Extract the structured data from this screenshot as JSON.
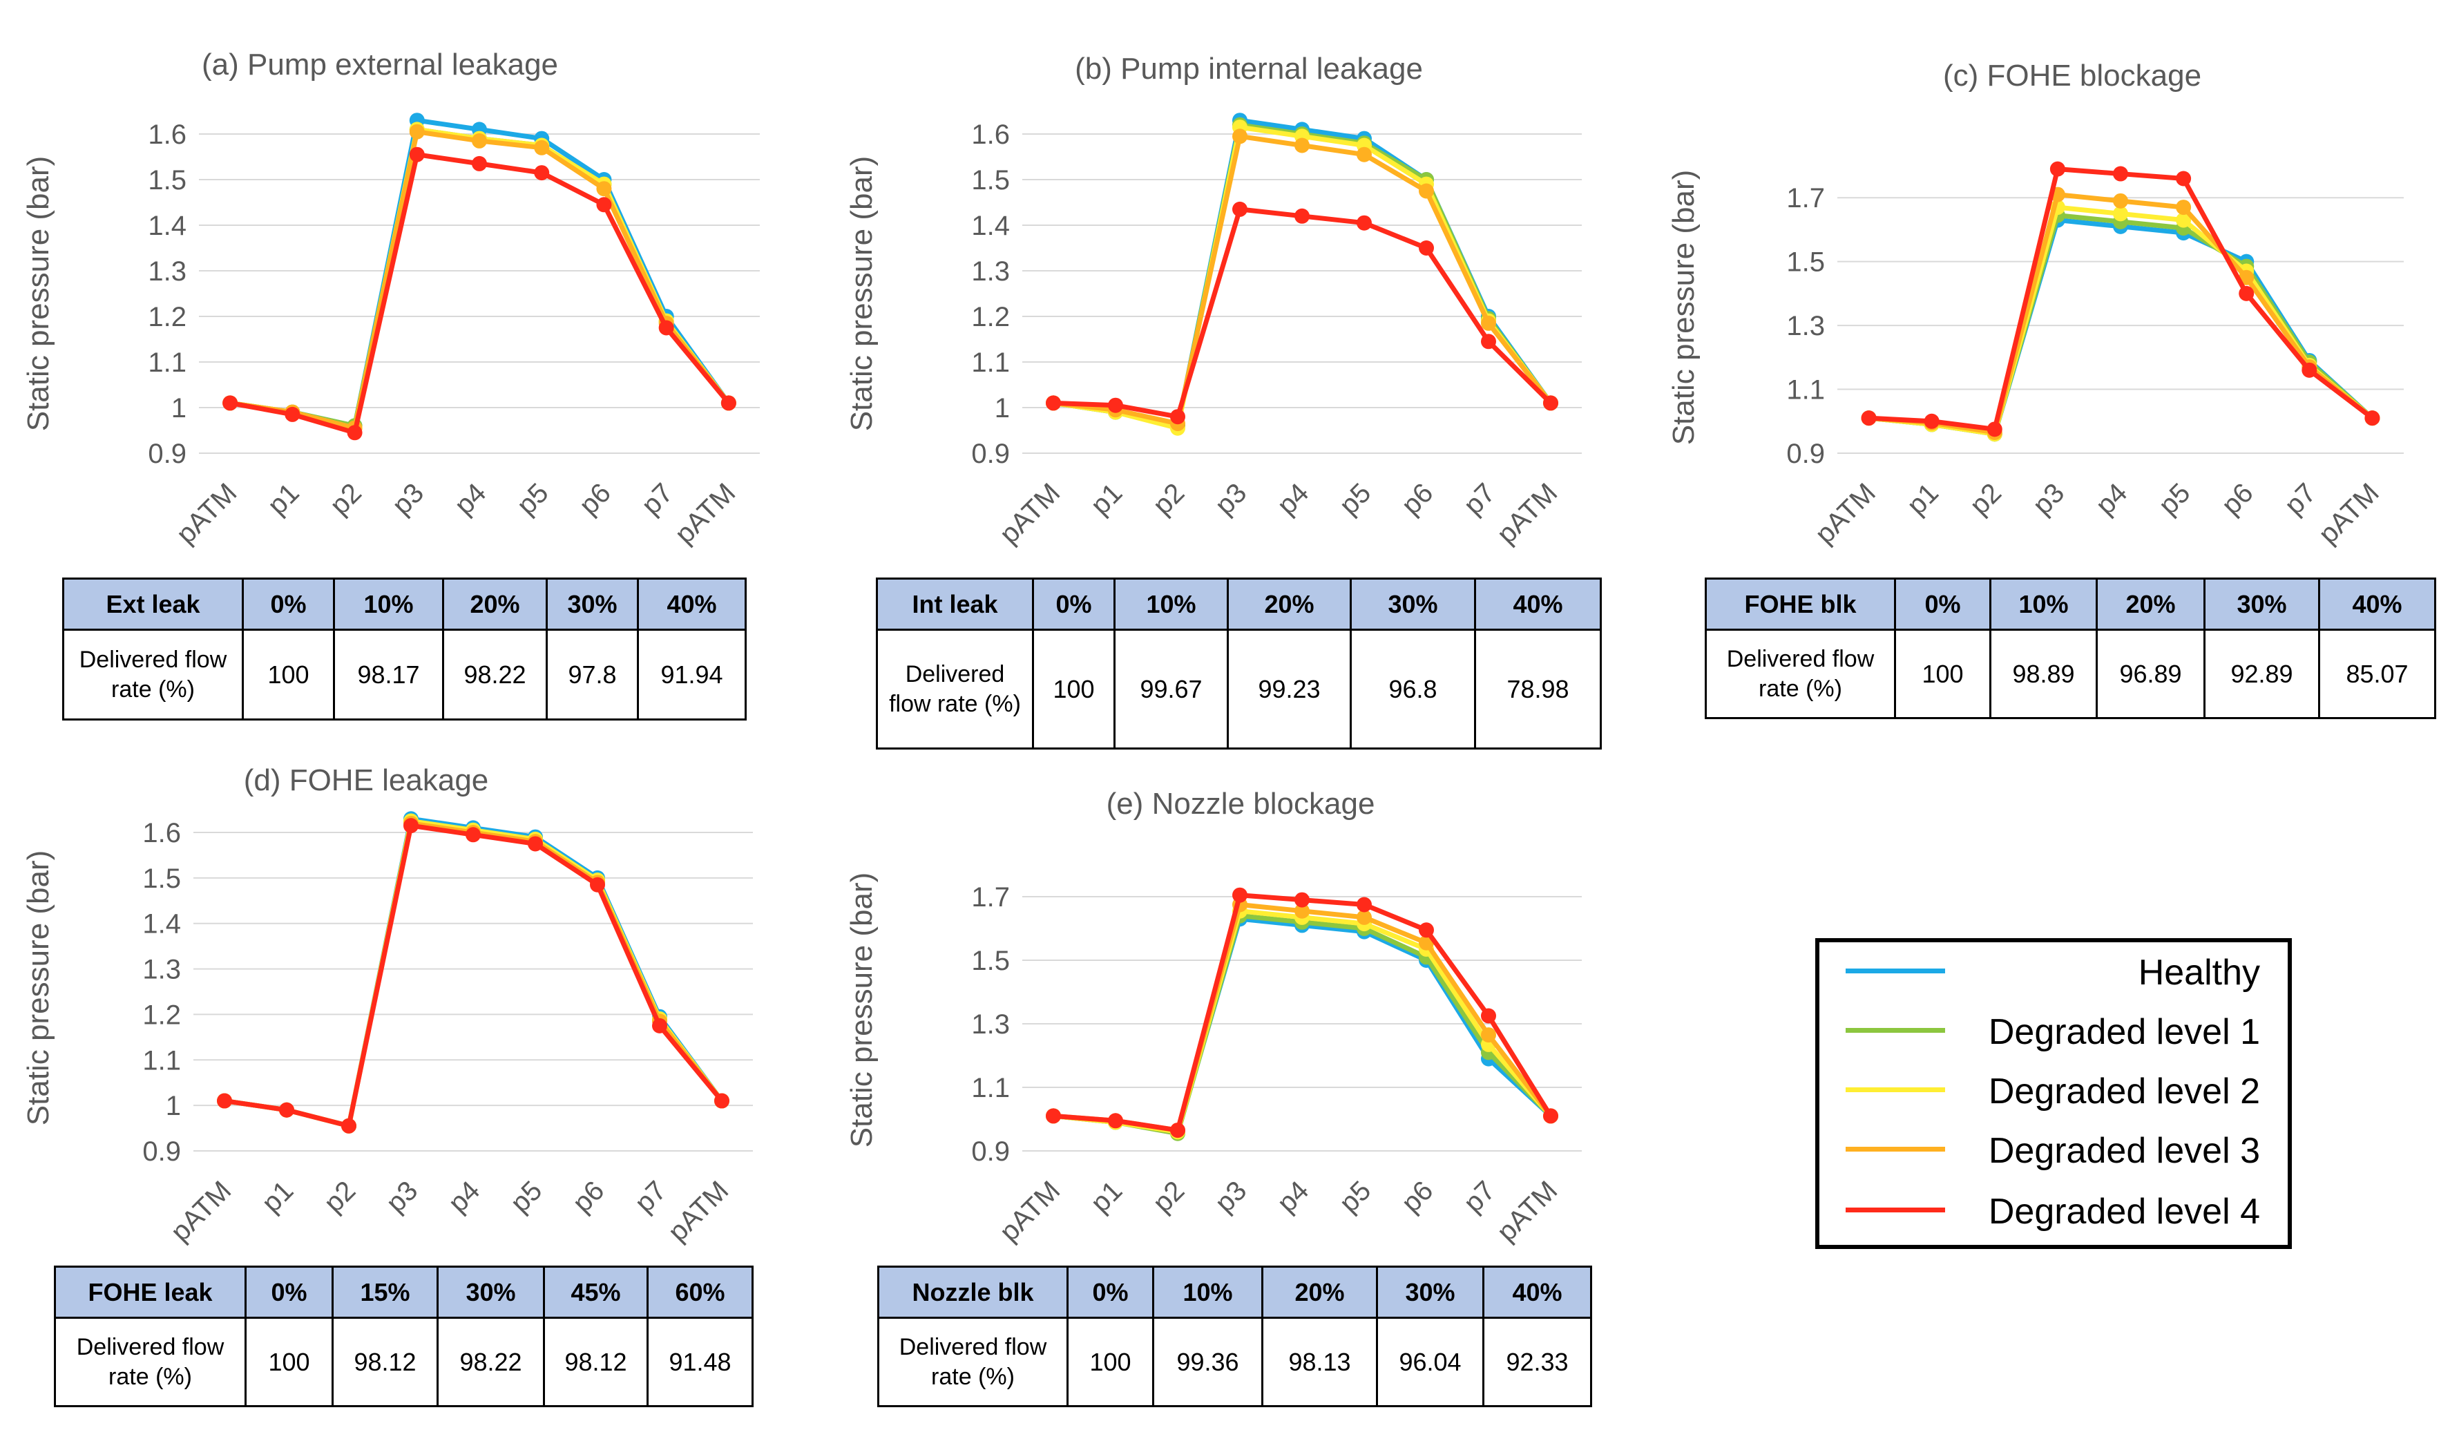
{
  "series_names": [
    "Healthy",
    "Degraded level 1",
    "Degraded level 2",
    "Degraded level 3",
    "Degraded level 4"
  ],
  "series_colors": [
    "#1ca9e6",
    "#8cc63f",
    "#ffee33",
    "#ffb020",
    "#ff2a1a"
  ],
  "chart_data": [
    {
      "type": "line",
      "title": "(a) Pump external leakage",
      "xlabel": "",
      "ylabel": "Static pressure (bar)",
      "ylim": [
        0.9,
        1.6
      ],
      "yticks": [
        0.9,
        1.0,
        1.1,
        1.2,
        1.3,
        1.4,
        1.5,
        1.6
      ],
      "ytick_labels": [
        "0.9",
        "1",
        "1.1",
        "1.2",
        "1.3",
        "1.4",
        "1.5",
        "1.6"
      ],
      "categories": [
        "pATM",
        "p1",
        "p2",
        "p3",
        "p4",
        "p5",
        "p6",
        "p7",
        "pATM"
      ],
      "series": [
        {
          "name": "Healthy",
          "values": [
            1.01,
            0.99,
            0.96,
            1.63,
            1.61,
            1.59,
            1.5,
            1.2,
            1.01
          ]
        },
        {
          "name": "Degraded level 1",
          "values": [
            1.01,
            0.99,
            0.96,
            1.61,
            1.59,
            1.575,
            1.49,
            1.19,
            1.01
          ]
        },
        {
          "name": "Degraded level 2",
          "values": [
            1.01,
            0.99,
            0.955,
            1.61,
            1.59,
            1.575,
            1.49,
            1.19,
            1.01
          ]
        },
        {
          "name": "Degraded level 3",
          "values": [
            1.01,
            0.99,
            0.955,
            1.605,
            1.585,
            1.57,
            1.48,
            1.185,
            1.01
          ]
        },
        {
          "name": "Degraded level 4",
          "values": [
            1.01,
            0.985,
            0.945,
            1.555,
            1.535,
            1.515,
            1.445,
            1.175,
            1.01
          ]
        }
      ]
    },
    {
      "type": "line",
      "title": "(b) Pump internal leakage",
      "xlabel": "",
      "ylabel": "Static pressure (bar)",
      "ylim": [
        0.9,
        1.6
      ],
      "yticks": [
        0.9,
        1.0,
        1.1,
        1.2,
        1.3,
        1.4,
        1.5,
        1.6
      ],
      "ytick_labels": [
        "0.9",
        "1",
        "1.1",
        "1.2",
        "1.3",
        "1.4",
        "1.5",
        "1.6"
      ],
      "categories": [
        "pATM",
        "p1",
        "p2",
        "p3",
        "p4",
        "p5",
        "p6",
        "p7",
        "pATM"
      ],
      "series": [
        {
          "name": "Healthy",
          "values": [
            1.01,
            0.99,
            0.96,
            1.63,
            1.61,
            1.59,
            1.5,
            1.2,
            1.01
          ]
        },
        {
          "name": "Degraded level 1",
          "values": [
            1.01,
            0.99,
            0.96,
            1.62,
            1.6,
            1.58,
            1.5,
            1.195,
            1.01
          ]
        },
        {
          "name": "Degraded level 2",
          "values": [
            1.01,
            0.99,
            0.955,
            1.615,
            1.595,
            1.575,
            1.49,
            1.19,
            1.01
          ]
        },
        {
          "name": "Degraded level 3",
          "values": [
            1.01,
            0.995,
            0.965,
            1.595,
            1.575,
            1.555,
            1.475,
            1.185,
            1.01
          ]
        },
        {
          "name": "Degraded level 4",
          "values": [
            1.01,
            1.005,
            0.98,
            1.435,
            1.42,
            1.405,
            1.35,
            1.145,
            1.01
          ]
        }
      ]
    },
    {
      "type": "line",
      "title": "(c) FOHE blockage",
      "xlabel": "",
      "ylabel": "Static pressure (bar)",
      "ylim": [
        0.9,
        1.8
      ],
      "yticks": [
        0.9,
        1.1,
        1.3,
        1.5,
        1.7
      ],
      "ytick_labels": [
        "0.9",
        "1.1",
        "1.3",
        "1.5",
        "1.7"
      ],
      "categories": [
        "pATM",
        "p1",
        "p2",
        "p3",
        "p4",
        "p5",
        "p6",
        "p7",
        "pATM"
      ],
      "series": [
        {
          "name": "Healthy",
          "values": [
            1.01,
            0.99,
            0.96,
            1.63,
            1.61,
            1.59,
            1.5,
            1.19,
            1.01
          ]
        },
        {
          "name": "Degraded level 1",
          "values": [
            1.01,
            0.99,
            0.96,
            1.645,
            1.625,
            1.605,
            1.485,
            1.185,
            1.01
          ]
        },
        {
          "name": "Degraded level 2",
          "values": [
            1.01,
            0.99,
            0.96,
            1.67,
            1.65,
            1.63,
            1.47,
            1.175,
            1.01
          ]
        },
        {
          "name": "Degraded level 3",
          "values": [
            1.01,
            0.995,
            0.965,
            1.71,
            1.69,
            1.67,
            1.45,
            1.17,
            1.01
          ]
        },
        {
          "name": "Degraded level 4",
          "values": [
            1.01,
            1.0,
            0.975,
            1.79,
            1.775,
            1.76,
            1.4,
            1.16,
            1.01
          ]
        }
      ]
    },
    {
      "type": "line",
      "title": "(d) FOHE leakage",
      "xlabel": "",
      "ylabel": "Static pressure (bar)",
      "ylim": [
        0.9,
        1.6
      ],
      "yticks": [
        0.9,
        1.0,
        1.1,
        1.2,
        1.3,
        1.4,
        1.5,
        1.6
      ],
      "ytick_labels": [
        "0.9",
        "1",
        "1.1",
        "1.2",
        "1.3",
        "1.4",
        "1.5",
        "1.6"
      ],
      "categories": [
        "pATM",
        "p1",
        "p2",
        "p3",
        "p4",
        "p5",
        "p6",
        "p7",
        "pATM"
      ],
      "series": [
        {
          "name": "Healthy",
          "values": [
            1.01,
            0.99,
            0.955,
            1.63,
            1.61,
            1.59,
            1.5,
            1.195,
            1.01
          ]
        },
        {
          "name": "Degraded level 1",
          "values": [
            1.01,
            0.99,
            0.955,
            1.625,
            1.605,
            1.585,
            1.495,
            1.19,
            1.01
          ]
        },
        {
          "name": "Degraded level 2",
          "values": [
            1.01,
            0.99,
            0.955,
            1.625,
            1.605,
            1.585,
            1.495,
            1.19,
            1.01
          ]
        },
        {
          "name": "Degraded level 3",
          "values": [
            1.01,
            0.99,
            0.955,
            1.62,
            1.6,
            1.58,
            1.49,
            1.185,
            1.01
          ]
        },
        {
          "name": "Degraded level 4",
          "values": [
            1.01,
            0.99,
            0.955,
            1.615,
            1.595,
            1.575,
            1.485,
            1.175,
            1.01
          ]
        }
      ]
    },
    {
      "type": "line",
      "title": "(e) Nozzle blockage",
      "xlabel": "",
      "ylabel": "Static pressure (bar)",
      "ylim": [
        0.9,
        1.8
      ],
      "yticks": [
        0.9,
        1.1,
        1.3,
        1.5,
        1.7
      ],
      "ytick_labels": [
        "0.9",
        "1.1",
        "1.3",
        "1.5",
        "1.7"
      ],
      "categories": [
        "pATM",
        "p1",
        "p2",
        "p3",
        "p4",
        "p5",
        "p6",
        "p7",
        "pATM"
      ],
      "series": [
        {
          "name": "Healthy",
          "values": [
            1.01,
            0.99,
            0.96,
            1.63,
            1.61,
            1.59,
            1.5,
            1.19,
            1.01
          ]
        },
        {
          "name": "Degraded level 1",
          "values": [
            1.01,
            0.99,
            0.955,
            1.64,
            1.62,
            1.6,
            1.51,
            1.21,
            1.01
          ]
        },
        {
          "name": "Degraded level 2",
          "values": [
            1.01,
            0.99,
            0.96,
            1.655,
            1.635,
            1.615,
            1.535,
            1.235,
            1.01
          ]
        },
        {
          "name": "Degraded level 3",
          "values": [
            1.01,
            0.995,
            0.965,
            1.675,
            1.655,
            1.635,
            1.555,
            1.265,
            1.01
          ]
        },
        {
          "name": "Degraded level 4",
          "values": [
            1.01,
            0.995,
            0.965,
            1.705,
            1.69,
            1.675,
            1.595,
            1.325,
            1.01
          ]
        }
      ]
    }
  ],
  "tables": [
    {
      "header": [
        "Ext leak",
        "0%",
        "10%",
        "20%",
        "30%",
        "40%"
      ],
      "row_label": "Delivered flow rate (%)",
      "values": [
        "100",
        "98.17",
        "98.22",
        "97.8",
        "91.94"
      ]
    },
    {
      "header": [
        "Int leak",
        "0%",
        "10%",
        "20%",
        "30%",
        "40%"
      ],
      "row_label": "Delivered flow rate (%)",
      "values": [
        "100",
        "99.67",
        "99.23",
        "96.8",
        "78.98"
      ]
    },
    {
      "header": [
        "FOHE blk",
        "0%",
        "10%",
        "20%",
        "30%",
        "40%"
      ],
      "row_label": "Delivered flow rate (%)",
      "values": [
        "100",
        "98.89",
        "96.89",
        "92.89",
        "85.07"
      ]
    },
    {
      "header": [
        "FOHE leak",
        "0%",
        "15%",
        "30%",
        "45%",
        "60%"
      ],
      "row_label": "Delivered flow rate (%)",
      "values": [
        "100",
        "98.12",
        "98.22",
        "98.12",
        "91.48"
      ]
    },
    {
      "header": [
        "Nozzle blk",
        "0%",
        "10%",
        "20%",
        "30%",
        "40%"
      ],
      "row_label": "Delivered flow rate (%)",
      "values": [
        "100",
        "99.36",
        "98.13",
        "96.04",
        "92.33"
      ]
    }
  ]
}
